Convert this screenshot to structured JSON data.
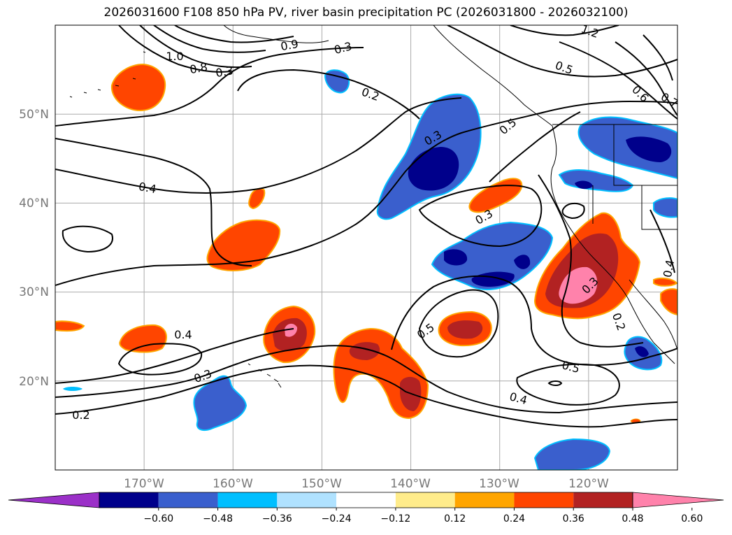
{
  "title": "2026031600 F108 850 hPa PV, river basin precipitation PC (2026031800 - 2026032100)",
  "map": {
    "projection": "equirectangular",
    "lon_range": [
      -180,
      -110
    ],
    "lat_range": [
      10,
      60
    ],
    "grid": true,
    "lat_labels": [
      "50°N",
      "40°N",
      "30°N",
      "20°N"
    ],
    "lon_labels": [
      "170°W",
      "160°W",
      "150°W",
      "140°W",
      "130°W",
      "120°W"
    ]
  },
  "pv_contour_labels": [
    "1.2",
    "1.0",
    "0.9",
    "0.8",
    "0.7",
    "0.6",
    "0.5",
    "0.5",
    "0.5",
    "0.5",
    "0.4",
    "0.4",
    "0.4",
    "0.4",
    "0.3",
    "0.3",
    "0.3",
    "0.3",
    "0.3",
    "0.3",
    "0.2",
    "0.2",
    "0.2"
  ],
  "colorbar": {
    "ticks": [
      "−0.60",
      "−0.48",
      "−0.36",
      "−0.24",
      "−0.12",
      "0.12",
      "0.24",
      "0.36",
      "0.48",
      "0.60"
    ],
    "colors": [
      "#9b30c8",
      "#00008b",
      "#3a5fcd",
      "#00bfff",
      "#b0e2ff",
      "#ffffff",
      "#ffec8b",
      "#ffa500",
      "#ff4500",
      "#b22222",
      "#ff82ab"
    ],
    "extend": "both"
  }
}
